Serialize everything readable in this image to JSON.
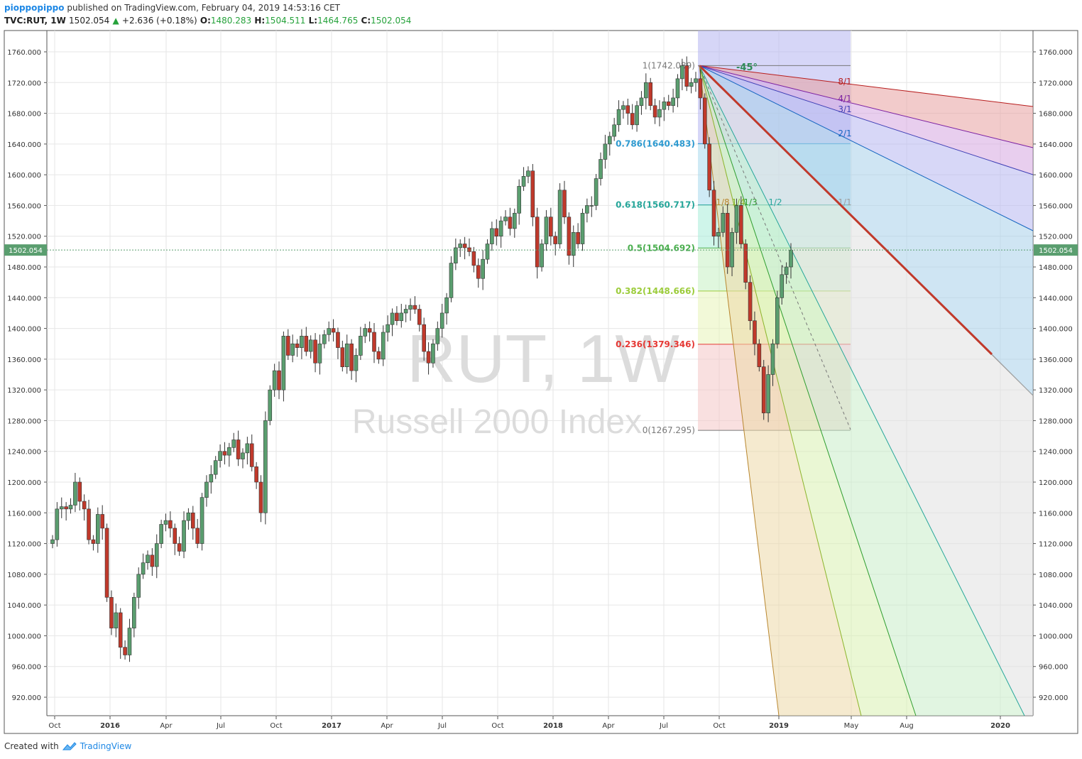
{
  "header": {
    "user": "pioppopippo",
    "published": "published on TradingView.com, February 04, 2019 14:53:16 CET",
    "symbol": "TVC:RUT, 1W",
    "last": "1502.054",
    "change_arrow": "▲",
    "change": "+2.636 (+0.18%)",
    "o_label": "O:",
    "o_value": "1480.283",
    "h_label": "H:",
    "h_value": "1504.511",
    "l_label": "L:",
    "l_value": "1464.765",
    "c_label": "C:",
    "c_value": "1502.054"
  },
  "footer": {
    "created_with": "Created with",
    "brand": "TradingView",
    "logo_icon": "tradingview-cloud-icon"
  },
  "watermark": {
    "line1": "RUT, 1W",
    "line2": "Russell 2000 Index"
  },
  "colors": {
    "up": "#26a23b",
    "down": "#c43232",
    "up_body": "#5a9e6f",
    "down_body": "#c0392b",
    "grid": "#e6e6e6",
    "price_tag": "#5a9e6f"
  },
  "chart_data": {
    "type": "candlestick",
    "symbol": "TVC:RUT",
    "interval": "1W",
    "ylim": [
      900,
      1780
    ],
    "y_ticks": [
      "1760.000",
      "1720.000",
      "1680.000",
      "1640.000",
      "1600.000",
      "1560.000",
      "1520.000",
      "1480.000",
      "1440.000",
      "1400.000",
      "1360.000",
      "1320.000",
      "1280.000",
      "1240.000",
      "1200.000",
      "1160.000",
      "1120.000",
      "1080.000",
      "1040.000",
      "1000.000",
      "960.000",
      "920.000"
    ],
    "x_ticks": [
      {
        "label": "Oct",
        "bold": false
      },
      {
        "label": "2016",
        "bold": true
      },
      {
        "label": "Apr",
        "bold": false
      },
      {
        "label": "Jul",
        "bold": false
      },
      {
        "label": "Oct",
        "bold": false
      },
      {
        "label": "2017",
        "bold": true
      },
      {
        "label": "Apr",
        "bold": false
      },
      {
        "label": "Jul",
        "bold": false
      },
      {
        "label": "Oct",
        "bold": false
      },
      {
        "label": "2018",
        "bold": true
      },
      {
        "label": "Apr",
        "bold": false
      },
      {
        "label": "Jul",
        "bold": false
      },
      {
        "label": "Oct",
        "bold": false
      },
      {
        "label": "2019",
        "bold": true
      },
      {
        "label": "May",
        "bold": false
      },
      {
        "label": "Aug",
        "bold": false
      },
      {
        "label": "2020",
        "bold": true
      }
    ],
    "last_price": 1502.054,
    "last_price_label": "1502.054",
    "closes": [
      1125,
      1165,
      1168,
      1165,
      1170,
      1200,
      1175,
      1165,
      1125,
      1120,
      1158,
      1140,
      1050,
      1010,
      1030,
      985,
      975,
      1010,
      1050,
      1080,
      1095,
      1105,
      1090,
      1120,
      1145,
      1150,
      1140,
      1120,
      1110,
      1150,
      1160,
      1140,
      1120,
      1180,
      1200,
      1210,
      1228,
      1240,
      1235,
      1245,
      1255,
      1230,
      1238,
      1250,
      1220,
      1200,
      1160,
      1280,
      1320,
      1345,
      1320,
      1390,
      1365,
      1380,
      1375,
      1390,
      1370,
      1385,
      1355,
      1380,
      1392,
      1400,
      1395,
      1375,
      1350,
      1380,
      1345,
      1365,
      1390,
      1400,
      1395,
      1370,
      1360,
      1395,
      1405,
      1420,
      1410,
      1420,
      1425,
      1430,
      1425,
      1405,
      1370,
      1355,
      1380,
      1400,
      1420,
      1440,
      1485,
      1505,
      1510,
      1505,
      1500,
      1482,
      1465,
      1490,
      1510,
      1530,
      1520,
      1540,
      1545,
      1530,
      1550,
      1585,
      1598,
      1605,
      1545,
      1480,
      1510,
      1545,
      1520,
      1510,
      1580,
      1545,
      1495,
      1525,
      1510,
      1550,
      1560,
      1560,
      1595,
      1620,
      1640,
      1650,
      1665,
      1685,
      1690,
      1680,
      1665,
      1690,
      1700,
      1720,
      1690,
      1675,
      1685,
      1695,
      1690,
      1700,
      1725,
      1742,
      1715,
      1720,
      1725,
      1700,
      1640,
      1580,
      1520,
      1525,
      1550,
      1480,
      1525,
      1560,
      1510,
      1460,
      1410,
      1380,
      1350,
      1290,
      1340,
      1380,
      1440,
      1470,
      1480,
      1502
    ],
    "fibonacci_retracement": {
      "high": 1742.089,
      "low": 1267.295,
      "levels": [
        {
          "ratio": "1",
          "value": 1742.089,
          "label": "1(1742.089)",
          "color": "#787878"
        },
        {
          "ratio": "0.786",
          "value": 1640.483,
          "label": "0.786(1640.483)",
          "color": "#2e9ad0"
        },
        {
          "ratio": "0.618",
          "value": 1560.717,
          "label": "0.618(1560.717)",
          "color": "#26a69a"
        },
        {
          "ratio": "0.5",
          "value": 1504.692,
          "label": "0.5(1504.692)",
          "color": "#4caf50"
        },
        {
          "ratio": "0.382",
          "value": 1448.666,
          "label": "0.382(1448.666)",
          "color": "#9ccc3b"
        },
        {
          "ratio": "0.236",
          "value": 1379.346,
          "label": "0.236(1379.346)",
          "color": "#e53935"
        },
        {
          "ratio": "0",
          "value": 1267.295,
          "label": "0(1267.295)",
          "color": "#787878"
        }
      ]
    },
    "gann_fan": {
      "angle_label": "-45°",
      "lines": [
        {
          "label": "8/1",
          "color": "#b71c1c"
        },
        {
          "label": "4/1",
          "color": "#7b1fa2"
        },
        {
          "label": "3/1",
          "color": "#3f3fb5"
        },
        {
          "label": "2/1",
          "color": "#1565c0"
        },
        {
          "label": "1/1",
          "color": "#9e9e9e"
        },
        {
          "label": "1/2",
          "color": "#26a69a"
        },
        {
          "label": "1/3",
          "color": "#2e9d2e"
        },
        {
          "label": "1/4",
          "color": "#8bb42a"
        },
        {
          "label": "1/8",
          "color": "#b8862e"
        }
      ]
    }
  }
}
